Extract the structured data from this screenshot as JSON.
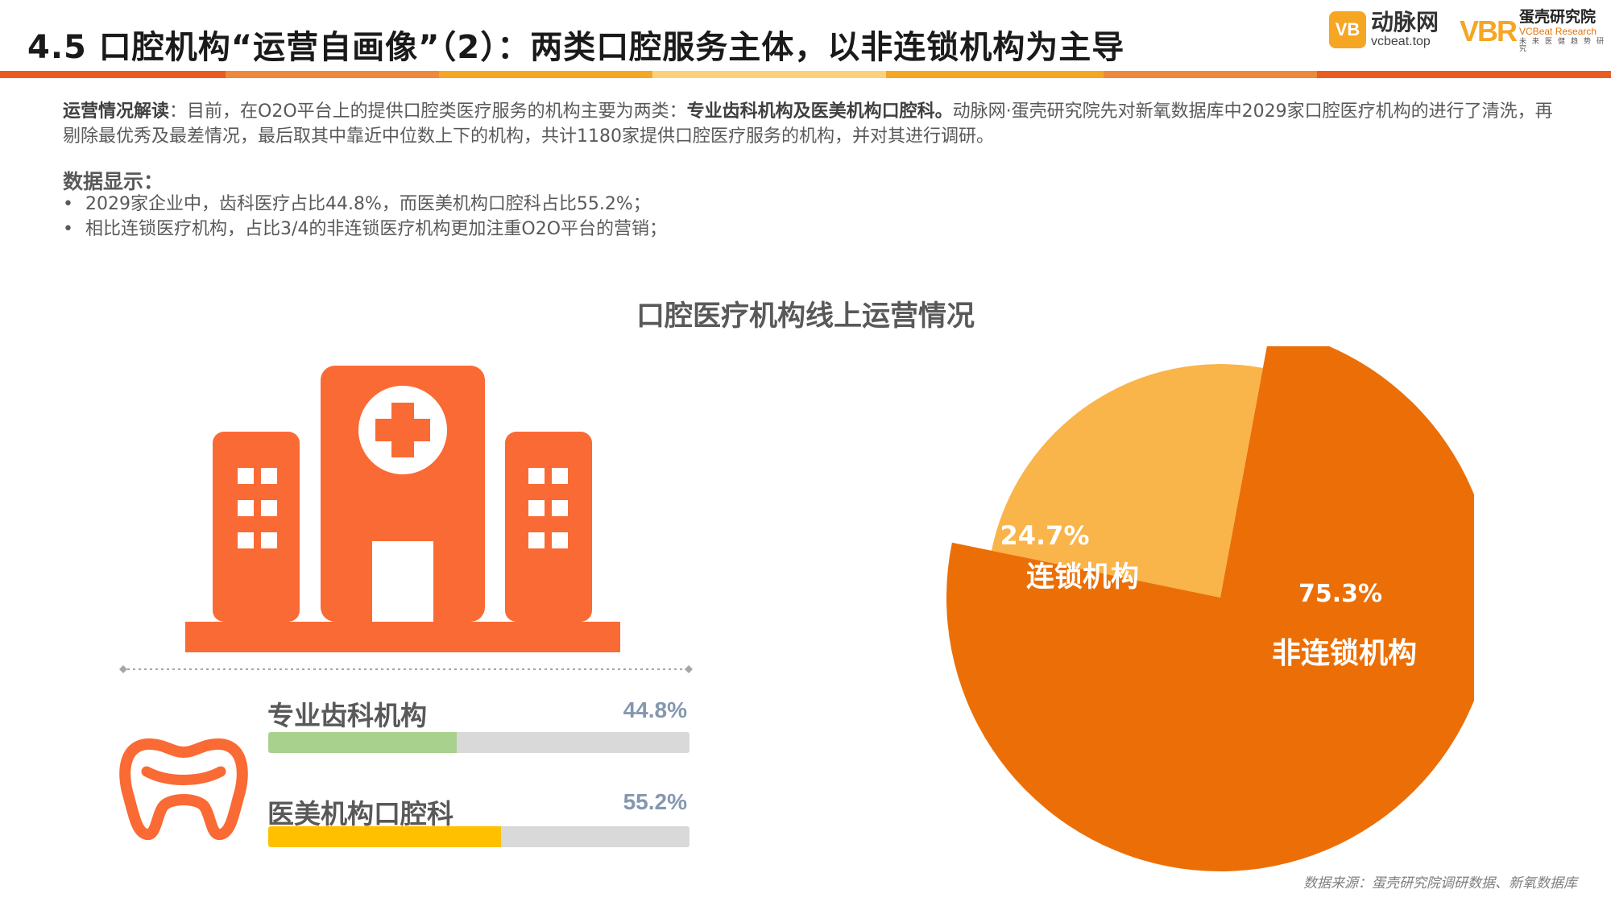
{
  "header": {
    "title": "4.5 口腔机构“运营自画像”（2）：两类口腔服务主体，以非连锁机构为主导",
    "bar_colors": [
      "#ea5b21",
      "#f0883a",
      "#f5a623",
      "#fbd27a",
      "#f5a623",
      "#f0883a",
      "#ea5b21"
    ]
  },
  "logos": {
    "vcbeat_badge": "VB",
    "vcbeat_cn": "动脉网",
    "vcbeat_en": "vcbeat.top",
    "vbr_mark": "VBR",
    "vbr_cn": "蛋壳研究院",
    "vbr_en": "VCBeat Research",
    "vbr_tagline": "未来医健趋势研究"
  },
  "intro": {
    "label": "运营情况解读",
    "text_a": "：目前，在O2O平台上的提供口腔类医疗服务的机构主要为两类：",
    "bold": "专业齿科机构及医美机构口腔科。",
    "text_b": "动脉网·蛋壳研究院先对新氧数据库中2029家口腔医疗机构的进行了清洗，再剔除最优秀及最差情况，最后取其中靠近中位数上下的机构，共计1180家提供口腔医疗服务的机构，并对其进行调研。"
  },
  "data_section": {
    "heading": "数据显示：",
    "bullets": [
      "2029家企业中，齿科医疗占比44.8%，而医美机构口腔科占比55.2%；",
      "相比连锁医疗机构，占比3/4的非连锁医疗机构更加注重O2O平台的营销；"
    ]
  },
  "chart_title": "口腔医疗机构线上运营情况",
  "icons": {
    "hospital": "hospital-icon",
    "tooth": "tooth-icon"
  },
  "colors": {
    "icon_orange": "#fa6a35",
    "bar_green": "#a9d18e",
    "bar_yellow": "#ffc000",
    "bar_track": "#d9d9d9",
    "pie_dark": "#eb6f06",
    "pie_light": "#f9b44a"
  },
  "chart_data": [
    {
      "type": "bar",
      "orientation": "horizontal",
      "categories": [
        "专业齿科机构",
        "医美机构口腔科"
      ],
      "values": [
        44.8,
        55.2
      ],
      "value_labels": [
        "44.8%",
        "55.2%"
      ],
      "colors": [
        "#a9d18e",
        "#ffc000"
      ],
      "xlim": [
        0,
        100
      ]
    },
    {
      "type": "pie",
      "slices": [
        {
          "label": "连锁机构",
          "value": 24.7,
          "value_label": "24.7%",
          "color": "#f9b44a"
        },
        {
          "label": "非连锁机构",
          "value": 75.3,
          "value_label": "75.3%",
          "color": "#eb6f06"
        }
      ]
    }
  ],
  "source": "数据来源：蛋壳研究院调研数据、新氧数据库"
}
